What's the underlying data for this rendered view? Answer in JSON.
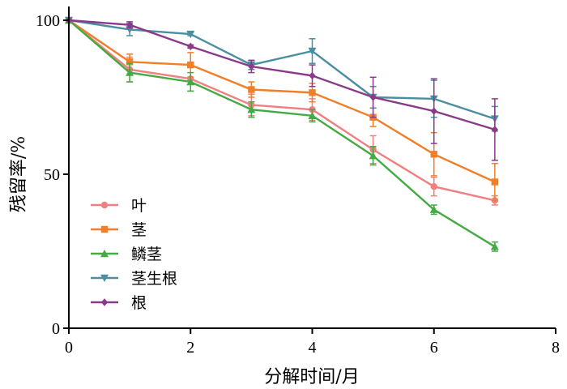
{
  "chart_data": {
    "type": "line",
    "xlabel": "分解时间/月",
    "ylabel": "残留率/%",
    "xlim": [
      0,
      8
    ],
    "ylim": [
      0,
      100
    ],
    "x_ticks": [
      "0",
      "2",
      "4",
      "6",
      "8"
    ],
    "y_ticks": [
      "0",
      "50",
      "100"
    ],
    "grid": false,
    "legend_position": "left",
    "x": [
      0,
      1,
      2,
      3,
      4,
      5,
      6,
      7
    ],
    "series": [
      {
        "name": "叶",
        "color": "#F08080",
        "marker": "circle",
        "values": [
          100,
          84,
          81,
          72.5,
          71,
          58,
          46,
          41.5
        ],
        "errors": [
          0,
          4,
          4,
          3.5,
          3.5,
          4.5,
          3,
          1.5
        ]
      },
      {
        "name": "茎",
        "color": "#F07F2A",
        "marker": "square",
        "values": [
          100,
          86.5,
          85.5,
          77.5,
          76.5,
          68.5,
          56.5,
          47.5
        ],
        "errors": [
          0,
          2.5,
          4,
          2.5,
          3,
          3,
          7,
          6
        ]
      },
      {
        "name": "鳞茎",
        "color": "#44AA44",
        "marker": "triangle-up",
        "values": [
          100,
          83,
          80,
          71,
          69,
          56,
          38.5,
          26.5
        ],
        "errors": [
          0,
          3,
          3,
          2.5,
          2,
          3,
          1.5,
          1.5
        ]
      },
      {
        "name": "茎生根",
        "color": "#4A8FA0",
        "marker": "triangle-down",
        "values": [
          100,
          97,
          95.5,
          85.5,
          90,
          75,
          74.5,
          68
        ],
        "errors": [
          0,
          2,
          0.5,
          1.5,
          4,
          3.5,
          6,
          4
        ]
      },
      {
        "name": "根",
        "color": "#8B3A8B",
        "marker": "diamond",
        "values": [
          100,
          98.5,
          91.5,
          85,
          82,
          75,
          70.5,
          64.5
        ],
        "errors": [
          0,
          1,
          0.5,
          2,
          3.5,
          6.5,
          10.5,
          10
        ]
      }
    ]
  }
}
